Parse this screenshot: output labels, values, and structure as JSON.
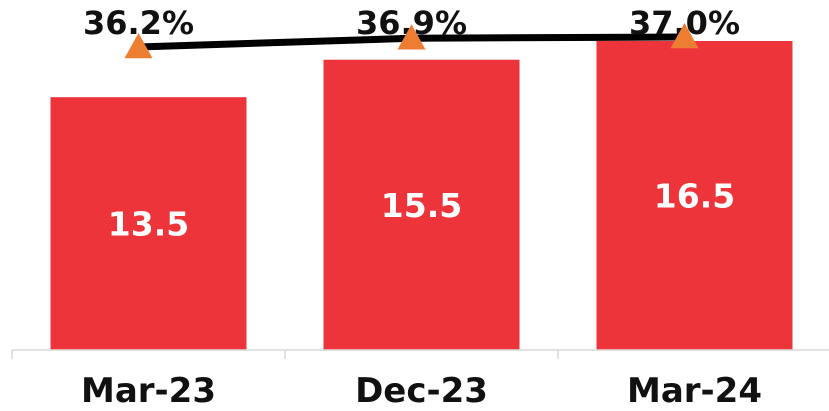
{
  "chart_data": {
    "type": "bar",
    "categories": [
      "Mar-23",
      "Dec-23",
      "Mar-24"
    ],
    "series": [
      {
        "type": "bar",
        "values": [
          13.5,
          15.5,
          16.5
        ],
        "labels": [
          "13.5",
          "15.5",
          "16.5"
        ],
        "color": "#ee343b"
      },
      {
        "type": "line",
        "values": [
          36.2,
          36.9,
          37.0
        ],
        "labels": [
          "36.2%",
          "36.9%",
          "37.0%"
        ],
        "line_color": "#000000",
        "marker": "triangle",
        "marker_color": "#ed7d31"
      }
    ],
    "title": "",
    "xlabel": "",
    "ylabel": "",
    "ylim": [
      0,
      16.5
    ],
    "grid": false,
    "legend": "none"
  }
}
